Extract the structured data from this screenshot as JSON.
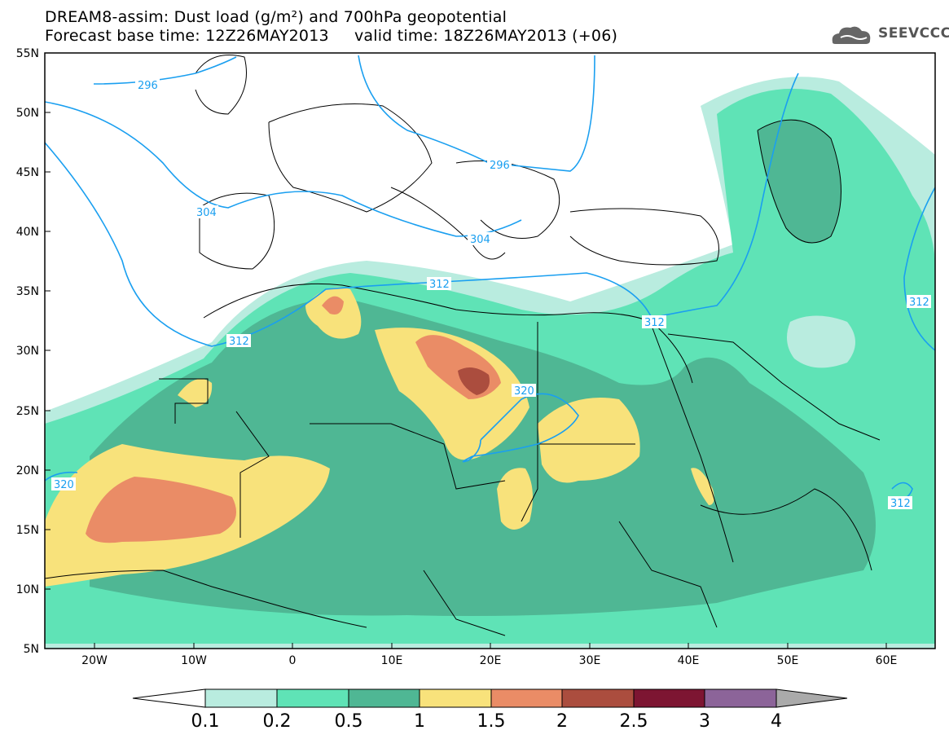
{
  "header": {
    "line1": "DREAM8-assim: Dust load (g/m²) and 700hPa geopotential",
    "line2": "Forecast base time: 12Z26MAY2013     valid time: 18Z26MAY2013 (+06)",
    "logo_text": "SEEVCCC",
    "logo_icon": "cloud-icon"
  },
  "axes": {
    "lat_ticks": [
      "55N",
      "50N",
      "45N",
      "40N",
      "35N",
      "30N",
      "25N",
      "20N",
      "15N",
      "10N",
      "5N"
    ],
    "lon_ticks": [
      "20W",
      "10W",
      "0",
      "10E",
      "20E",
      "30E",
      "40E",
      "50E",
      "60E"
    ]
  },
  "contour_labels": [
    "296",
    "296",
    "304",
    "304",
    "312",
    "312",
    "312",
    "312",
    "312",
    "320",
    "320"
  ],
  "colorbar": {
    "labels": [
      "0.1",
      "0.2",
      "0.5",
      "1",
      "1.5",
      "2",
      "2.5",
      "3",
      "4"
    ],
    "colors": [
      "#b9ecdf",
      "#5fe3b6",
      "#4fb794",
      "#f8e27b",
      "#ea8c66",
      "#ab4d3e",
      "#7d1532",
      "#8c6499"
    ]
  },
  "colors": {
    "contour": "#1a9ff0",
    "border": "#000000"
  }
}
